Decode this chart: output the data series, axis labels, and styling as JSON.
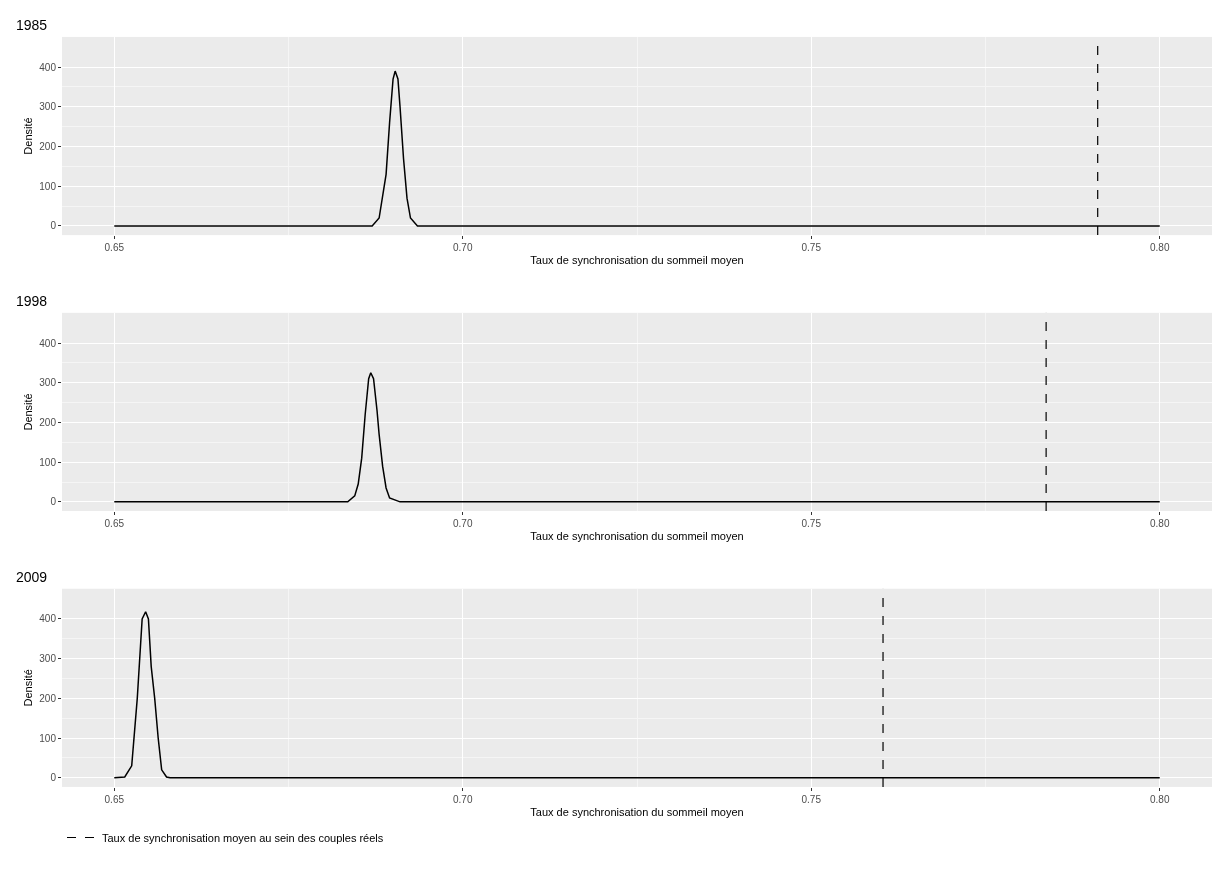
{
  "chart_data": [
    {
      "type": "line",
      "title": "1985",
      "xlabel": "Taux de synchronisation du sommeil moyen",
      "ylabel": "Densité",
      "xlim": [
        0.6425,
        0.8075
      ],
      "ylim": [
        -23,
        476
      ],
      "xticks": [
        {
          "value": 0.65,
          "label": "0.65"
        },
        {
          "value": 0.7,
          "label": "0.70"
        },
        {
          "value": 0.75,
          "label": "0.75"
        },
        {
          "value": 0.8,
          "label": "0.80"
        }
      ],
      "yticks": [
        0,
        100,
        200,
        300,
        400
      ],
      "grid": true,
      "legend": "bottom left",
      "marker": "none",
      "series": [
        {
          "color": "#000000",
          "x": [
            0.65,
            0.687,
            0.688,
            0.689,
            0.6895,
            0.69,
            0.6903,
            0.6907,
            0.691,
            0.6915,
            0.692,
            0.6925,
            0.6935,
            0.8
          ],
          "values": [
            0,
            0,
            20,
            130,
            260,
            370,
            390,
            370,
            300,
            170,
            70,
            20,
            0,
            0
          ]
        }
      ],
      "ref_lines": [
        {
          "axis": "x",
          "value": 0.7911,
          "line_style": "dashed",
          "color": "#000000",
          "label": "Taux de synchronisation moyen au sein des couples réels"
        }
      ]
    },
    {
      "type": "line",
      "title": "1998",
      "xlabel": "Taux de synchronisation du sommeil moyen",
      "ylabel": "Densité",
      "xlim": [
        0.6425,
        0.8075
      ],
      "ylim": [
        -23,
        476
      ],
      "xticks": [
        {
          "value": 0.65,
          "label": "0.65"
        },
        {
          "value": 0.7,
          "label": "0.70"
        },
        {
          "value": 0.75,
          "label": "0.75"
        },
        {
          "value": 0.8,
          "label": "0.80"
        }
      ],
      "yticks": [
        0,
        100,
        200,
        300,
        400
      ],
      "grid": true,
      "marker": "none",
      "series": [
        {
          "color": "#000000",
          "x": [
            0.65,
            0.6835,
            0.6845,
            0.685,
            0.6855,
            0.686,
            0.6865,
            0.6868,
            0.6872,
            0.6877,
            0.688,
            0.6885,
            0.689,
            0.6895,
            0.691,
            0.8
          ],
          "values": [
            0,
            0,
            15,
            45,
            110,
            220,
            310,
            325,
            310,
            230,
            170,
            90,
            35,
            10,
            0,
            0
          ]
        }
      ],
      "ref_lines": [
        {
          "axis": "x",
          "value": 0.7837,
          "line_style": "dashed",
          "color": "#000000"
        }
      ]
    },
    {
      "type": "line",
      "title": "2009",
      "xlabel": "Taux de synchronisation du sommeil moyen",
      "ylabel": "Densité",
      "xlim": [
        0.6425,
        0.8075
      ],
      "ylim": [
        -23,
        476
      ],
      "xticks": [
        {
          "value": 0.65,
          "label": "0.65"
        },
        {
          "value": 0.7,
          "label": "0.70"
        },
        {
          "value": 0.75,
          "label": "0.75"
        },
        {
          "value": 0.8,
          "label": "0.80"
        }
      ],
      "yticks": [
        0,
        100,
        200,
        300,
        400
      ],
      "grid": true,
      "marker": "none",
      "series": [
        {
          "color": "#000000",
          "x": [
            0.65,
            0.6515,
            0.6525,
            0.6533,
            0.654,
            0.6545,
            0.6549,
            0.6553,
            0.6558,
            0.6563,
            0.6568,
            0.6575,
            0.658,
            0.8
          ],
          "values": [
            0,
            2,
            30,
            200,
            400,
            418,
            400,
            280,
            200,
            100,
            20,
            2,
            0,
            0
          ]
        }
      ],
      "ref_lines": [
        {
          "axis": "x",
          "value": 0.7603,
          "line_style": "dashed",
          "color": "#000000"
        }
      ]
    }
  ]
}
